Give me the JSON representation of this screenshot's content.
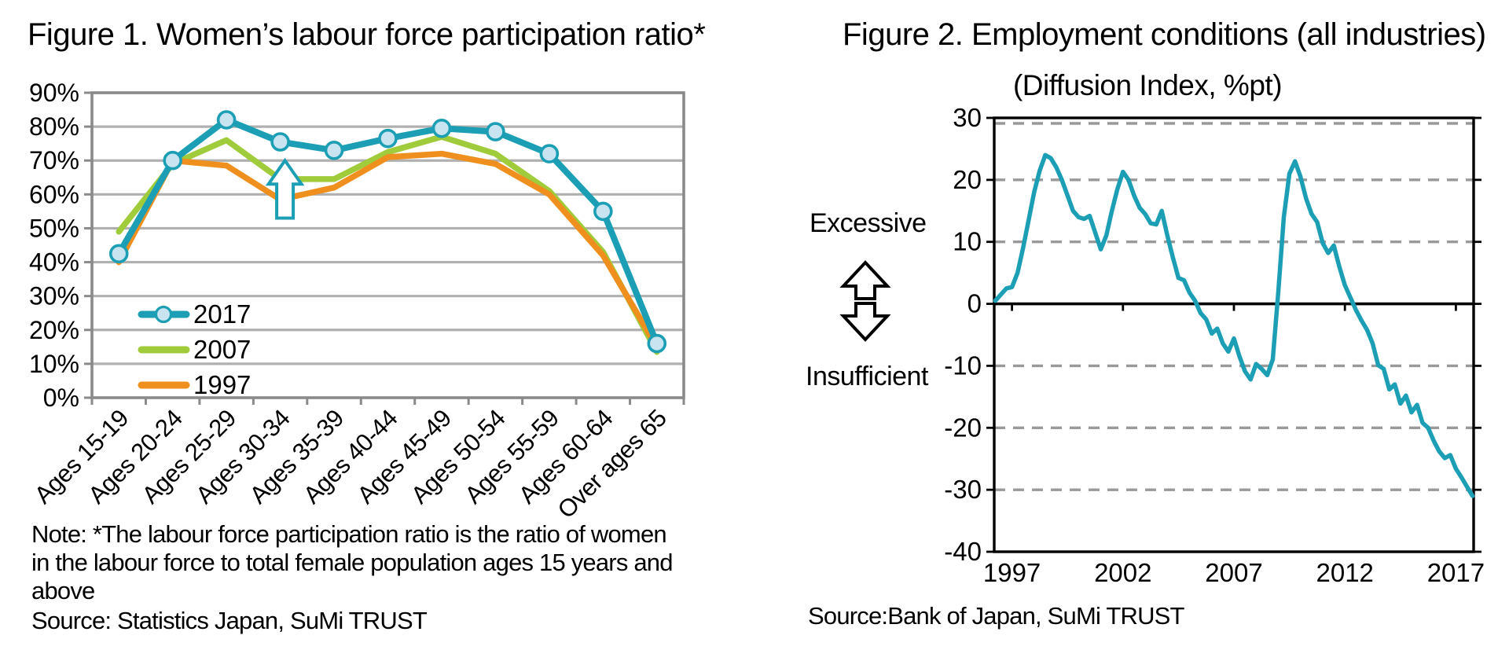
{
  "figure1": {
    "title": "Figure 1. Women’s labour force participation ratio*",
    "note_lines": [
      "Note: *The labour force participation ratio is the ratio of women",
      "in the labour force to total female population ages 15 years and",
      "above"
    ],
    "source": "Source: Statistics Japan, SuMi TRUST"
  },
  "figure2": {
    "title": "Figure 2. Employment conditions (all industries)",
    "subtitle": "(Diffusion Index, %pt)",
    "excessive_label": "Excessive",
    "insufficient_label": "Insufficient",
    "source": "Source:Bank of Japan, SuMi TRUST"
  },
  "colors": {
    "teal": "#1C9FB4",
    "marker_fill": "#C9E4F1",
    "green": "#A0CB3A",
    "orange": "#EF8F1E",
    "grid_gray": "#B0B0B0",
    "border_gray": "#8A8A8A",
    "dash_gray": "#999999",
    "black": "#000000"
  },
  "chart_data": [
    {
      "type": "line",
      "title": "Figure 1. Women's labour force participation ratio*",
      "categories": [
        "Ages 15-19",
        "Ages 20-24",
        "Ages 25-29",
        "Ages 30-34",
        "Ages 35-39",
        "Ages 40-44",
        "Ages 45-49",
        "Ages 50-54",
        "Ages 55-59",
        "Ages 60-64",
        "Over ages 65"
      ],
      "ylim": [
        0,
        90
      ],
      "ytick_step": 10,
      "ytick_suffix": "%",
      "grid": "horizontal",
      "legend_position": "inside-lower-left",
      "series": [
        {
          "name": "2017",
          "color": "#1C9FB4",
          "marker": true,
          "values": [
            42.5,
            70,
            82,
            75.5,
            73,
            76.5,
            79.5,
            78.5,
            72,
            55,
            16
          ]
        },
        {
          "name": "2007",
          "color": "#A0CB3A",
          "marker": false,
          "values": [
            49,
            69,
            76,
            64.5,
            64.5,
            72.5,
            77,
            72,
            61,
            43,
            13.5
          ]
        },
        {
          "name": "1997",
          "color": "#EF8F1E",
          "marker": false,
          "values": [
            40,
            70,
            68.5,
            58.5,
            62,
            71,
            72,
            69,
            60,
            42,
            15
          ]
        }
      ],
      "annotation": {
        "type": "up-arrow",
        "at_category": "Ages 30-34",
        "category_index": 3,
        "from": 53,
        "to": 70
      }
    },
    {
      "type": "line",
      "title": "Figure 2. Employment conditions (all industries)",
      "subtitle": "(Diffusion Index, %pt)",
      "ylabel_upper": "Excessive",
      "ylabel_lower": "Insufficient",
      "ylim": [
        -40,
        30
      ],
      "ytick_step": 10,
      "yticks": [
        30,
        20,
        10,
        0,
        -10,
        -20,
        -30,
        -40
      ],
      "xlim": [
        1996.2,
        2017.8
      ],
      "xticks": [
        1997,
        2002,
        2007,
        2012,
        2017
      ],
      "zero_line": true,
      "grid": "dashed-horizontal",
      "color": "#1C9FB4",
      "x_start": 1996.25,
      "x_step": 0.25,
      "values": [
        0.5,
        1.5,
        2.5,
        2.7,
        5,
        9,
        13.5,
        18,
        21.5,
        24,
        23.5,
        22,
        20,
        17.5,
        15,
        14,
        13.7,
        14.2,
        11.5,
        8.8,
        11,
        15,
        18.5,
        21.3,
        20,
        17.5,
        15.5,
        14.5,
        13,
        12.8,
        15,
        11,
        7.5,
        4.2,
        3.8,
        1.8,
        0.5,
        -1.5,
        -2.5,
        -4.8,
        -4,
        -6.4,
        -7.7,
        -5.6,
        -8.5,
        -10.9,
        -12.2,
        -9.7,
        -10.5,
        -11.5,
        -9,
        2,
        14,
        21,
        23,
        20.5,
        17,
        14.5,
        13.2,
        9.8,
        8.2,
        9.4,
        6,
        3,
        1,
        -1,
        -2.7,
        -4.2,
        -6.4,
        -9.9,
        -10.5,
        -13.8,
        -13,
        -16.1,
        -14.8,
        -17.5,
        -16.3,
        -19.2,
        -20,
        -22.1,
        -23.8,
        -24.9,
        -24.4,
        -26.6,
        -28,
        -29.5,
        -31
      ]
    }
  ]
}
